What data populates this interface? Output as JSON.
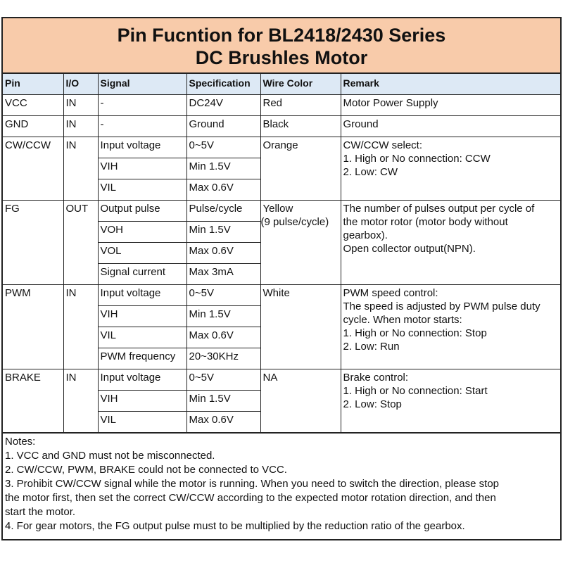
{
  "title": {
    "line1": "Pin Fucntion for BL2418/2430 Series",
    "line2": "DC Brushles Motor"
  },
  "colors": {
    "title_bg": "#f8cbaa",
    "header_bg": "#dde9f5"
  },
  "headers": [
    "Pin",
    "I/O",
    "Signal",
    "Specification",
    "Wire Color",
    "Remark"
  ],
  "rows": {
    "vcc": {
      "pin": "VCC",
      "io": "IN",
      "signal": "-",
      "spec": "DC24V",
      "wire": "Red",
      "remark": [
        "Motor Power Supply"
      ]
    },
    "gnd": {
      "pin": "GND",
      "io": "IN",
      "signal": "-",
      "spec": "Ground",
      "wire": "Black",
      "remark": [
        "Ground"
      ]
    },
    "cwccw": {
      "pin": "CW/CCW",
      "io": "IN",
      "sub": [
        {
          "signal": "Input voltage",
          "spec": "0~5V"
        },
        {
          "signal": "VIH",
          "spec": "Min 1.5V"
        },
        {
          "signal": "VIL",
          "spec": "Max 0.6V"
        }
      ],
      "wire": "Orange",
      "remark": [
        "CW/CCW select:",
        "1. High or No connection: CCW",
        "2. Low: CW"
      ]
    },
    "fg": {
      "pin": "FG",
      "io": "OUT",
      "sub": [
        {
          "signal": "Output pulse",
          "spec": "Pulse/cycle"
        },
        {
          "signal": "VOH",
          "spec": "Min 1.5V"
        },
        {
          "signal": "VOL",
          "spec": "Max 0.6V"
        },
        {
          "signal": "Signal current",
          "spec": "Max 3mA"
        }
      ],
      "wire": "Yellow",
      "wire2": "(9 pulse/cycle)",
      "remark": [
        "The number of pulses output per cycle of",
        "the motor rotor (motor body without",
        "gearbox).",
        "Open collector output(NPN)."
      ]
    },
    "pwm": {
      "pin": "PWM",
      "io": "IN",
      "sub": [
        {
          "signal": "Input voltage",
          "spec": "0~5V"
        },
        {
          "signal": "VIH",
          "spec": "Min 1.5V"
        },
        {
          "signal": "VIL",
          "spec": "Max 0.6V"
        },
        {
          "signal": "PWM frequency",
          "spec": "20~30KHz"
        }
      ],
      "wire": "White",
      "remark": [
        "PWM speed control:",
        "The speed is adjusted by PWM pulse duty",
        "cycle. When motor starts:",
        "1. High or No connection: Stop",
        "2. Low: Run"
      ]
    },
    "brake": {
      "pin": "BRAKE",
      "io": "IN",
      "sub": [
        {
          "signal": "Input voltage",
          "spec": "0~5V"
        },
        {
          "signal": "VIH",
          "spec": "Min 1.5V"
        },
        {
          "signal": "VIL",
          "spec": "Max 0.6V"
        }
      ],
      "wire": "NA",
      "remark": [
        "Brake control:",
        "1. High or No connection: Start",
        "2. Low: Stop"
      ]
    }
  },
  "notes": [
    "Notes:",
    "1. VCC and GND must not be misconnected.",
    "2. CW/CCW, PWM, BRAKE could not be connected to VCC.",
    "3. Prohibit CW/CCW signal while the motor is running. When you need to switch the direction, please stop",
    "the motor first, then set the correct CW/CCW according to the expected motor rotation direction, and then",
    "start the motor.",
    "4.  For gear motors, the FG output pulse must to be multiplied by the reduction ratio of the gearbox."
  ]
}
